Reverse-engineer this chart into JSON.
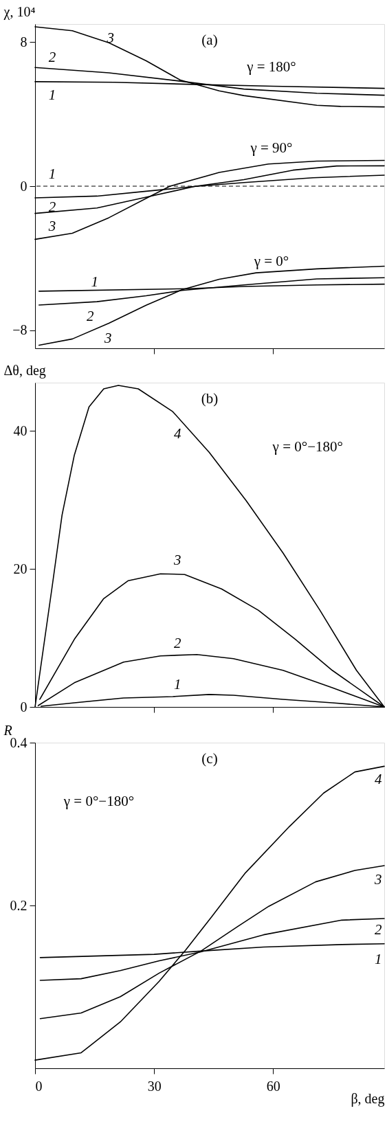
{
  "chart_data": [
    {
      "type": "line",
      "title": "(a)",
      "ylabel": "χ, 10⁴",
      "xlim": [
        0,
        88
      ],
      "xticks": [
        30,
        60
      ],
      "ylim": [
        -9,
        9
      ],
      "yticks": [
        -8,
        0,
        8
      ],
      "tick_labels": "y",
      "grid": false,
      "legend": false,
      "line_style": "solid",
      "marker": "none",
      "series": [
        {
          "name": "1",
          "color": "#000000",
          "x": [
            0,
            20,
            40,
            60,
            88
          ],
          "values": [
            5.8,
            5.77,
            5.65,
            5.55,
            5.43
          ]
        },
        {
          "name": "2",
          "color": "#000000",
          "x": [
            0,
            18.6,
            36.6,
            52.6,
            71,
            88
          ],
          "values": [
            6.59,
            6.29,
            5.83,
            5.39,
            5.16,
            5.05
          ]
        },
        {
          "name": "3",
          "color": "#000000",
          "x": [
            0,
            9.4,
            18.6,
            28,
            36.6,
            46.4,
            52.6,
            71,
            77,
            88
          ],
          "values": [
            8.85,
            8.63,
            7.96,
            6.96,
            5.89,
            5.29,
            5.03,
            4.49,
            4.43,
            4.4
          ]
        },
        {
          "name": "1",
          "color": "#000000",
          "x": [
            0,
            15.6,
            28,
            40,
            52.6,
            70,
            88
          ],
          "values": [
            -0.65,
            -0.55,
            -0.28,
            -0.02,
            0.2,
            0.47,
            0.61
          ]
        },
        {
          "name": "2",
          "color": "#000000",
          "x": [
            0,
            15.6,
            28,
            40.3,
            52.6,
            65,
            76,
            88
          ],
          "values": [
            -1.51,
            -1.21,
            -0.61,
            -0.01,
            0.36,
            0.89,
            1.12,
            1.13
          ]
        },
        {
          "name": "3",
          "color": "#000000",
          "x": [
            0,
            9.4,
            18.6,
            28,
            34,
            46.4,
            58.8,
            71,
            88
          ],
          "values": [
            -2.95,
            -2.61,
            -1.75,
            -0.68,
            0,
            0.76,
            1.23,
            1.39,
            1.43
          ]
        },
        {
          "name": "1",
          "color": "#000000",
          "x": [
            1,
            38.4,
            52.6,
            71,
            88
          ],
          "values": [
            -5.83,
            -5.69,
            -5.57,
            -5.48,
            -5.44
          ]
        },
        {
          "name": "2",
          "color": "#000000",
          "x": [
            1,
            15.6,
            28,
            37,
            52.6,
            71,
            88
          ],
          "values": [
            -6.6,
            -6.41,
            -6.08,
            -5.79,
            -5.48,
            -5.15,
            -5.08
          ]
        },
        {
          "name": "3",
          "color": "#000000",
          "x": [
            1,
            9.4,
            18.6,
            28,
            37,
            46.4,
            55.7,
            71,
            88
          ],
          "values": [
            -8.83,
            -8.48,
            -7.61,
            -6.61,
            -5.75,
            -5.17,
            -4.81,
            -4.59,
            -4.44
          ]
        }
      ],
      "ref_lines": [
        {
          "axis": "y",
          "value": 0,
          "line_style": "dashed",
          "color": "#000000"
        }
      ],
      "annotations": [
        "γ = 180°",
        "γ = 90°",
        "γ = 0°"
      ]
    },
    {
      "type": "line",
      "title": "(b)",
      "ylabel": "Δθ, deg",
      "xlim": [
        0,
        88
      ],
      "xticks": [
        30,
        60
      ],
      "ylim": [
        0,
        47
      ],
      "yticks": [
        0,
        20,
        40
      ],
      "tick_labels": "y",
      "grid": false,
      "legend": false,
      "line_style": "solid",
      "marker": "none",
      "series": [
        {
          "name": "1",
          "color": "#000000",
          "x": [
            1.5,
            9.9,
            22.3,
            34.7,
            43.9,
            50,
            62.5,
            74.9,
            88
          ],
          "values": [
            0.1,
            0.6,
            1.3,
            1.5,
            1.8,
            1.7,
            1.1,
            0.6,
            0
          ]
        },
        {
          "name": "2",
          "color": "#000000",
          "x": [
            0.8,
            9.9,
            22.3,
            31.6,
            40.8,
            50,
            62.5,
            74.9,
            88
          ],
          "values": [
            0.2,
            3.5,
            6.5,
            7.4,
            7.6,
            7.0,
            5.3,
            2.8,
            0
          ]
        },
        {
          "name": "3",
          "color": "#000000",
          "x": [
            1.2,
            9.9,
            17.3,
            23.5,
            31.6,
            37.7,
            47,
            56.3,
            65.6,
            74.9,
            88
          ],
          "values": [
            1.1,
            9.8,
            15.7,
            18.3,
            19.3,
            19.2,
            17.1,
            14,
            9.8,
            5.3,
            0
          ]
        },
        {
          "name": "4",
          "color": "#000000",
          "x": [
            0,
            4.3,
            6.8,
            9.9,
            13.6,
            17.3,
            21,
            26,
            34.7,
            43.9,
            53.2,
            62.5,
            71.8,
            81,
            88
          ],
          "values": [
            0,
            17.4,
            27.8,
            36.5,
            43.5,
            46.1,
            46.6,
            46.1,
            42.8,
            36.9,
            29.9,
            22.3,
            14,
            5.3,
            0
          ]
        }
      ],
      "annotations": [
        "γ = 0°−180°"
      ]
    },
    {
      "type": "line",
      "title": "(c)",
      "ylabel": "R",
      "xlabel": "β, deg",
      "xlim": [
        0,
        88
      ],
      "xticks": [
        0,
        30,
        60
      ],
      "ylim": [
        0,
        0.4
      ],
      "yticks": [
        0.2,
        0.4
      ],
      "grid": false,
      "legend": false,
      "line_style": "solid",
      "marker": "none",
      "series": [
        {
          "name": "1",
          "color": "#000000",
          "x": [
            1.3,
            30,
            41.8,
            57.6,
            77.3,
            88
          ],
          "values": [
            0.136,
            0.14,
            0.144,
            0.149,
            0.152,
            0.153
          ]
        },
        {
          "name": "2",
          "color": "#000000",
          "x": [
            1.3,
            11.6,
            21.5,
            31.3,
            41.8,
            57.6,
            77.3,
            88
          ],
          "values": [
            0.108,
            0.11,
            0.12,
            0.132,
            0.143,
            0.164,
            0.182,
            0.184
          ]
        },
        {
          "name": "3",
          "color": "#000000",
          "x": [
            1.3,
            11.6,
            21.5,
            31.3,
            41.8,
            51,
            58.9,
            70.7,
            80.6,
            88
          ],
          "values": [
            0.061,
            0.068,
            0.088,
            0.117,
            0.144,
            0.174,
            0.199,
            0.229,
            0.243,
            0.249
          ]
        },
        {
          "name": "4",
          "color": "#000000",
          "x": [
            0,
            11.6,
            21.5,
            31.3,
            37.9,
            44.5,
            53,
            64.1,
            72.7,
            80.6,
            88
          ],
          "values": [
            0.01,
            0.019,
            0.057,
            0.107,
            0.145,
            0.186,
            0.24,
            0.297,
            0.338,
            0.364,
            0.371
          ]
        }
      ],
      "annotations": [
        "γ = 0°−180°"
      ]
    }
  ]
}
